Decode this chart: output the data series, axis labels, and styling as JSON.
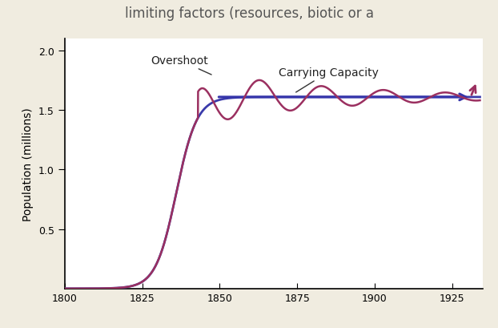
{
  "title": "limiting factors (resources, biotic or a",
  "ylabel": "Population (millions)",
  "xlim": [
    1800,
    1935
  ],
  "ylim": [
    0,
    2.1
  ],
  "yticks": [
    0.5,
    1.0,
    1.5,
    2.0
  ],
  "xticks": [
    1800,
    1825,
    1850,
    1875,
    1900,
    1925
  ],
  "carrying_capacity": 1.61,
  "logistic_color": "#3a3aaa",
  "oscillating_color": "#9b3060",
  "cc_line_color": "#3535aa",
  "plot_bg": "#ffffff",
  "fig_bg": "#f0ece0",
  "overshoot_label": "Overshoot",
  "cc_label": "Carrying Capacity",
  "logistic_r": 0.3,
  "logistic_t0": 1836,
  "osc_start": 1843,
  "osc_amp0": 0.22,
  "osc_decay": 0.022,
  "osc_period": 20
}
